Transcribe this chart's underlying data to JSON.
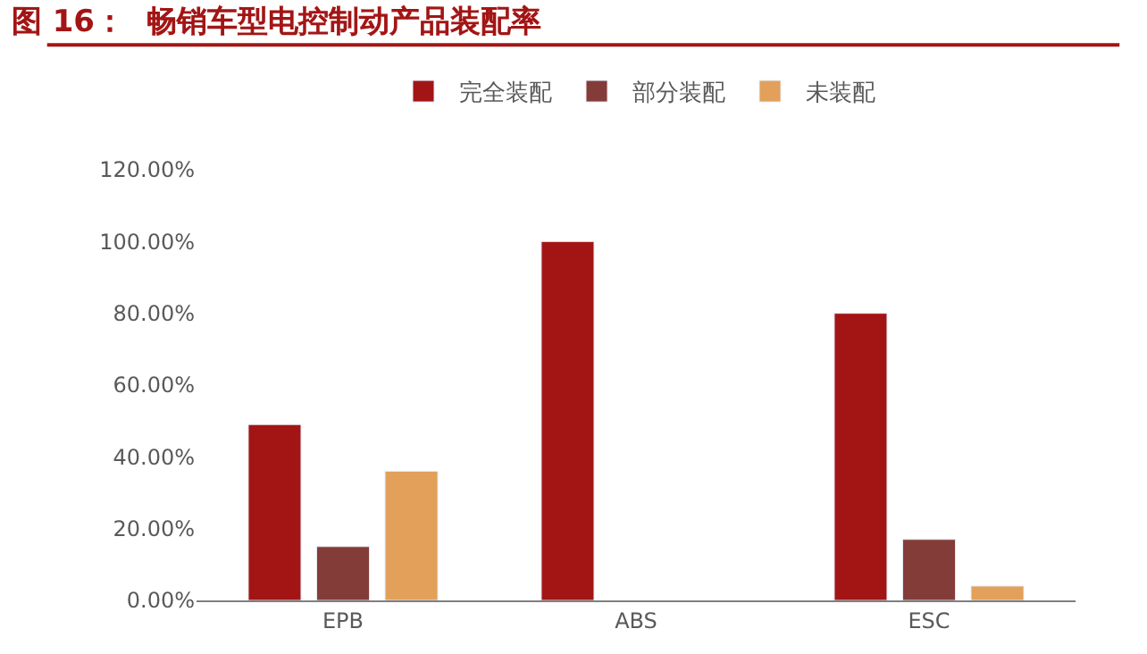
{
  "chart_data": {
    "type": "bar",
    "title": "图 16：  畅销车型电控制动产品装配率",
    "categories": [
      "EPB",
      "ABS",
      "ESC"
    ],
    "series": [
      {
        "name": "完全装配",
        "color": "#a31515",
        "values": [
          49,
          100,
          80
        ]
      },
      {
        "name": "部分装配",
        "color": "#843c39",
        "values": [
          15,
          null,
          17
        ]
      },
      {
        "name": "未装配",
        "color": "#e2a05a",
        "values": [
          36,
          null,
          4
        ]
      }
    ],
    "ylim": [
      0,
      120
    ],
    "yticks": [
      {
        "value": 0,
        "label": "0.00%"
      },
      {
        "value": 20,
        "label": "20.00%"
      },
      {
        "value": 40,
        "label": "40.00%"
      },
      {
        "value": 60,
        "label": "60.00%"
      },
      {
        "value": 80,
        "label": "80.00%"
      },
      {
        "value": 100,
        "label": "100.00%"
      },
      {
        "value": 120,
        "label": "120.00%"
      }
    ],
    "legend": "top"
  }
}
